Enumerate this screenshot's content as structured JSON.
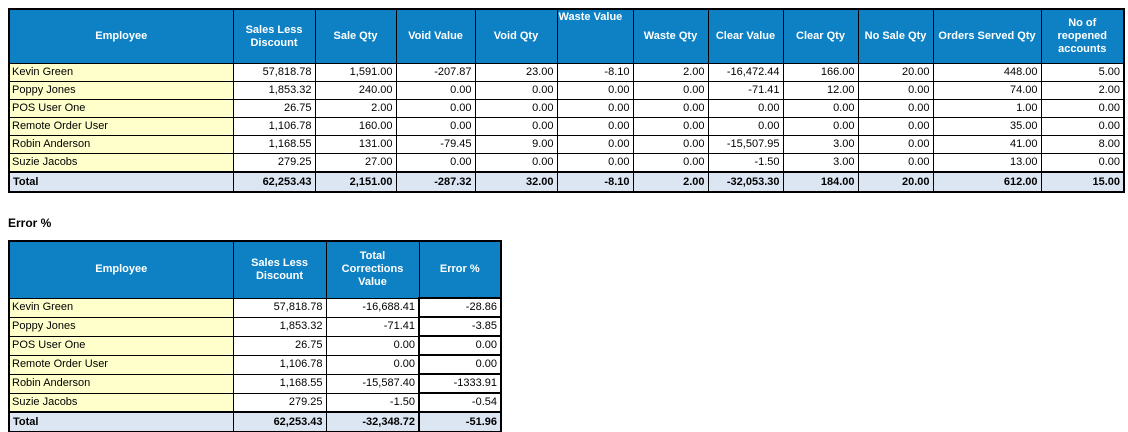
{
  "colors": {
    "header_bg": "#0E81C4",
    "header_text": "#FFFFFF",
    "employee_col_bg": "#FFFFCC",
    "total_row_bg": "#DCE6F2",
    "border": "#000000"
  },
  "main_table": {
    "columns": [
      "Employee",
      "Sales Less Discount",
      "Sale Qty",
      "Void Value",
      "Void Qty",
      "Waste Value",
      "Waste Qty",
      "Clear Value",
      "Clear Qty",
      "No Sale Qty",
      "Orders Served Qty",
      "No of reopened accounts"
    ],
    "rows": [
      {
        "employee": "Kevin Green",
        "values": [
          "57,818.78",
          "1,591.00",
          "-207.87",
          "23.00",
          "-8.10",
          "2.00",
          "-16,472.44",
          "166.00",
          "20.00",
          "448.00",
          "5.00"
        ]
      },
      {
        "employee": "Poppy Jones",
        "values": [
          "1,853.32",
          "240.00",
          "0.00",
          "0.00",
          "0.00",
          "0.00",
          "-71.41",
          "12.00",
          "0.00",
          "74.00",
          "2.00"
        ]
      },
      {
        "employee": "POS User One",
        "values": [
          "26.75",
          "2.00",
          "0.00",
          "0.00",
          "0.00",
          "0.00",
          "0.00",
          "0.00",
          "0.00",
          "1.00",
          "0.00"
        ]
      },
      {
        "employee": "Remote Order User",
        "values": [
          "1,106.78",
          "160.00",
          "0.00",
          "0.00",
          "0.00",
          "0.00",
          "0.00",
          "0.00",
          "0.00",
          "35.00",
          "0.00"
        ]
      },
      {
        "employee": "Robin Anderson",
        "values": [
          "1,168.55",
          "131.00",
          "-79.45",
          "9.00",
          "0.00",
          "0.00",
          "-15,507.95",
          "3.00",
          "0.00",
          "41.00",
          "8.00"
        ]
      },
      {
        "employee": "Suzie Jacobs",
        "values": [
          "279.25",
          "27.00",
          "0.00",
          "0.00",
          "0.00",
          "0.00",
          "-1.50",
          "3.00",
          "0.00",
          "13.00",
          "0.00"
        ]
      }
    ],
    "total": {
      "label": "Total",
      "values": [
        "62,253.43",
        "2,151.00",
        "-287.32",
        "32.00",
        "-8.10",
        "2.00",
        "-32,053.30",
        "184.00",
        "20.00",
        "612.00",
        "15.00"
      ]
    }
  },
  "error_section": {
    "title": "Error %",
    "table": {
      "columns": [
        "Employee",
        "Sales Less Discount",
        "Total Corrections Value",
        "Error %"
      ],
      "rows": [
        {
          "employee": "Kevin Green",
          "values": [
            "57,818.78",
            "-16,688.41",
            "-28.86"
          ]
        },
        {
          "employee": "Poppy Jones",
          "values": [
            "1,853.32",
            "-71.41",
            "-3.85"
          ]
        },
        {
          "employee": "POS User One",
          "values": [
            "26.75",
            "0.00",
            "0.00"
          ]
        },
        {
          "employee": "Remote Order User",
          "values": [
            "1,106.78",
            "0.00",
            "0.00"
          ]
        },
        {
          "employee": "Robin Anderson",
          "values": [
            "1,168.55",
            "-15,587.40",
            "-1333.91"
          ]
        },
        {
          "employee": "Suzie Jacobs",
          "values": [
            "279.25",
            "-1.50",
            "-0.54"
          ]
        }
      ],
      "total": {
        "label": "Total",
        "values": [
          "62,253.43",
          "-32,348.72",
          "-51.96"
        ]
      }
    }
  }
}
